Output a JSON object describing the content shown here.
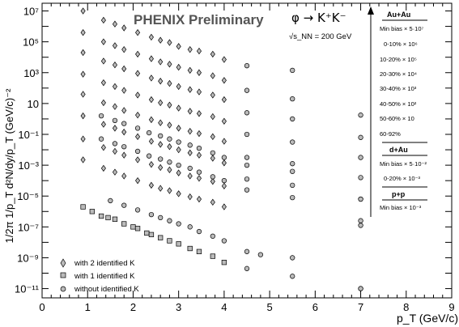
{
  "chart_data": {
    "type": "scatter",
    "title": "PHENIX Preliminary",
    "reaction": "φ → K⁺K⁻",
    "energy": "√s_NN = 200 GeV",
    "xlabel": "p_T (GeV/c)",
    "ylabel": "1/2π  1/p_T  d²N/dy/p_T (GeV/c)⁻²",
    "xlim": [
      0,
      9
    ],
    "ylim_log10": [
      -11.6,
      7.5
    ],
    "y_scale": "log",
    "x_ticks": [
      "0",
      "1",
      "2",
      "3",
      "4",
      "5",
      "6",
      "7",
      "8",
      "9"
    ],
    "y_ticks": [
      {
        "exp": 7,
        "label": "10⁷"
      },
      {
        "exp": 5,
        "label": "10⁵"
      },
      {
        "exp": 3,
        "label": "10³"
      },
      {
        "exp": 1,
        "label": "10"
      },
      {
        "exp": -1,
        "label": "10⁻¹"
      },
      {
        "exp": -3,
        "label": "10⁻³"
      },
      {
        "exp": -5,
        "label": "10⁻⁵"
      },
      {
        "exp": -7,
        "label": "10⁻⁷"
      },
      {
        "exp": -9,
        "label": "10⁻⁹"
      },
      {
        "exp": -11,
        "label": "10⁻¹¹"
      }
    ],
    "marker_legend": [
      {
        "marker": "diamond",
        "label": "with 2 identified K"
      },
      {
        "marker": "square",
        "label": "with 1 identified K"
      },
      {
        "marker": "circle",
        "label": "without identified K"
      }
    ],
    "side_legend": {
      "groups": [
        {
          "header": "Au+Au",
          "items": [
            "Min bias × 5·10⁷",
            "0-10% × 10⁶",
            "10-20% × 10⁵",
            "20-30% × 10⁴",
            "30-40% × 10³",
            "40-50% × 10²",
            "50-60% × 10",
            "60-92%"
          ]
        },
        {
          "header": "d+Au",
          "items": [
            "Min bias × 5·10⁻²",
            "0-20% × 10⁻³"
          ]
        },
        {
          "header": "p+p",
          "items": [
            "Min bias × 10⁻³"
          ]
        }
      ]
    },
    "series": [
      {
        "marker": "diamond",
        "x": [
          0.9,
          1.35,
          1.6,
          1.8,
          2.1,
          2.4,
          2.6,
          2.8,
          3.0,
          3.25,
          3.45,
          3.75,
          4.0
        ],
        "y": [
          7.0,
          6.4,
          6.15,
          5.9,
          5.6,
          5.3,
          5.1,
          4.95,
          4.7,
          4.5,
          4.4,
          4.2,
          3.85
        ]
      },
      {
        "marker": "diamond",
        "x": [
          0.9,
          1.35,
          1.6,
          1.8,
          2.1,
          2.4,
          2.6,
          2.8,
          3.0,
          3.25,
          3.45,
          3.75,
          4.0
        ],
        "y": [
          5.6,
          5.0,
          4.75,
          4.5,
          4.2,
          3.9,
          3.7,
          3.55,
          3.35,
          3.15,
          3.0,
          2.8,
          2.5
        ]
      },
      {
        "marker": "diamond",
        "x": [
          0.9,
          1.35,
          1.6,
          1.8,
          2.1,
          2.4,
          2.6,
          2.8,
          3.0,
          3.25,
          3.45,
          3.75,
          4.0
        ],
        "y": [
          4.3,
          3.75,
          3.5,
          3.25,
          2.95,
          2.65,
          2.45,
          2.3,
          2.1,
          1.9,
          1.75,
          1.55,
          1.25
        ]
      },
      {
        "marker": "diamond",
        "x": [
          0.9,
          1.35,
          1.6,
          1.8,
          2.1,
          2.4,
          2.6,
          2.8,
          3.0,
          3.25,
          3.45,
          3.75,
          4.0
        ],
        "y": [
          2.9,
          2.35,
          2.1,
          1.85,
          1.55,
          1.25,
          1.05,
          0.9,
          0.7,
          0.5,
          0.35,
          0.15,
          -0.15
        ]
      },
      {
        "marker": "diamond",
        "x": [
          0.9,
          1.35,
          1.6,
          1.8,
          2.1,
          2.4,
          2.6,
          2.8,
          3.0,
          3.25,
          3.45,
          3.75,
          4.0
        ],
        "y": [
          1.6,
          1.05,
          0.8,
          0.55,
          0.25,
          -0.05,
          -0.25,
          -0.4,
          -0.6,
          -0.8,
          -0.95,
          -1.15,
          -1.45
        ]
      },
      {
        "marker": "diamond",
        "x": [
          0.9,
          1.35,
          1.6,
          1.8,
          2.1,
          2.4,
          2.6,
          2.8,
          3.0,
          3.25,
          3.45,
          3.75,
          4.0
        ],
        "y": [
          0.2,
          -0.35,
          -0.6,
          -0.85,
          -1.15,
          -1.45,
          -1.65,
          -1.8,
          -2.0,
          -2.2,
          -2.35,
          -2.55,
          -2.85
        ]
      },
      {
        "marker": "diamond",
        "x": [
          0.9,
          1.35,
          1.6,
          1.8,
          2.1,
          2.4,
          2.6,
          2.8,
          3.0,
          3.25,
          3.45,
          3.75,
          4.0
        ],
        "y": [
          -1.3,
          -1.85,
          -2.1,
          -2.35,
          -2.65,
          -2.95,
          -3.15,
          -3.3,
          -3.5,
          -3.7,
          -3.85,
          -4.05,
          -4.35
        ]
      },
      {
        "marker": "diamond",
        "x": [
          0.9,
          1.35,
          1.6,
          1.8,
          2.1,
          2.4,
          2.6,
          2.8,
          3.0,
          3.25,
          3.45,
          3.75,
          4.0
        ],
        "y": [
          -2.65,
          -3.2,
          -3.45,
          -3.7,
          -4.0,
          -4.3,
          -4.5,
          -4.65,
          -4.85,
          -5.05,
          -5.2,
          -5.4,
          -5.7
        ]
      },
      {
        "marker": "circle",
        "x": [
          4.5,
          5.5,
          7.0
        ],
        "y": [
          3.45,
          3.15,
          0.25
        ]
      },
      {
        "marker": "circle",
        "x": [
          4.5,
          5.5,
          7.0
        ],
        "y": [
          1.85,
          1.3,
          -1.2
        ]
      },
      {
        "marker": "circle",
        "x": [
          4.5,
          5.5,
          7.0
        ],
        "y": [
          0.4,
          0.0,
          -2.5
        ]
      },
      {
        "marker": "circle",
        "x": [
          4.5,
          5.5,
          7.0
        ],
        "y": [
          -1.0,
          -1.5,
          -3.8
        ]
      },
      {
        "marker": "circle",
        "x": [
          4.5,
          5.5,
          7.0
        ],
        "y": [
          -2.5,
          -2.9,
          -5.2
        ]
      },
      {
        "marker": "circle",
        "x": [
          4.5,
          5.5,
          7.0
        ],
        "y": [
          -3.9,
          -4.3,
          -6.6
        ]
      },
      {
        "marker": "circle",
        "x": [
          1.3,
          1.6,
          1.8,
          2.1,
          2.35,
          2.6,
          2.8,
          3.0,
          3.25,
          3.45,
          3.75,
          4.0,
          4.5,
          5.5,
          7.0
        ],
        "y": [
          0.2,
          -0.1,
          -0.3,
          -0.6,
          -0.9,
          -1.1,
          -1.3,
          -1.5,
          -1.7,
          -1.9,
          -2.2,
          -2.5,
          -3.0,
          -3.4,
          -5.2
        ]
      },
      {
        "marker": "circle",
        "x": [
          1.3,
          1.6,
          1.8,
          2.1,
          2.35,
          2.6,
          2.8,
          3.0,
          3.25,
          3.45,
          3.75,
          4.0,
          4.5,
          5.5,
          7.0
        ],
        "y": [
          -1.3,
          -1.6,
          -1.8,
          -2.1,
          -2.4,
          -2.6,
          -2.8,
          -3.0,
          -3.2,
          -3.45,
          -3.75,
          -4.0,
          -4.6,
          -5.1,
          -6.9
        ]
      },
      {
        "marker": "circle",
        "x": [
          1.5,
          1.8,
          2.1,
          2.4,
          2.6,
          2.8,
          3.0,
          3.25,
          3.45,
          3.75,
          4.0,
          4.5,
          5.5,
          7.0
        ],
        "y": [
          -5.3,
          -5.6,
          -5.9,
          -6.2,
          -6.4,
          -6.6,
          -6.8,
          -7.0,
          -7.3,
          -7.6,
          -7.9,
          -8.6,
          -9.0,
          -11.0
        ]
      },
      {
        "marker": "square",
        "x": [
          0.9,
          1.1,
          1.3,
          1.45,
          1.6,
          1.8,
          2.0,
          2.1,
          2.3,
          2.4,
          2.6,
          2.8,
          3.0,
          3.25,
          3.45,
          3.75,
          4.0
        ],
        "y": [
          -5.7,
          -6.0,
          -6.3,
          -6.4,
          -6.5,
          -6.8,
          -7.0,
          -7.1,
          -7.4,
          -7.5,
          -7.7,
          -7.9,
          -8.1,
          -8.4,
          -8.6,
          -8.9,
          -9.3
        ]
      },
      {
        "marker": "circle",
        "x": [
          4.5,
          4.8,
          5.5,
          7.0
        ],
        "y": [
          -9.7,
          -8.8,
          -10.2,
          -11.0
        ]
      }
    ]
  }
}
